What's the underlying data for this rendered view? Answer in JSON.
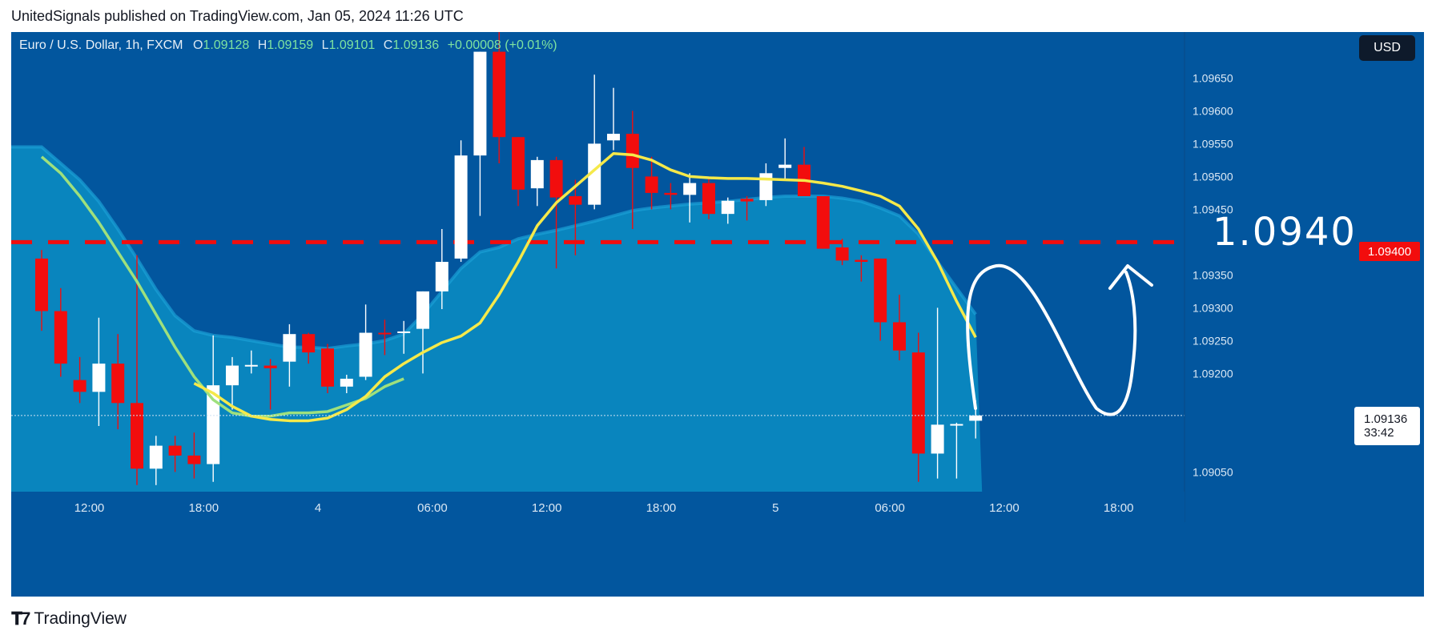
{
  "header": {
    "published_line": "UnitedSignals published on TradingView.com, Jan 05, 2024 11:26 UTC"
  },
  "legend": {
    "symbol": "Euro / U.S. Dollar, 1h, FXCM",
    "o_label": "O",
    "o_value": "1.09128",
    "h_label": "H",
    "h_value": "1.09159",
    "l_label": "L",
    "l_value": "1.09101",
    "c_label": "C",
    "c_value": "1.09136",
    "change": "+0.00008 (+0.01%)"
  },
  "currency_button": "USD",
  "price_badge": {
    "price": "1.09136",
    "countdown": "33:42"
  },
  "level_badge": "1.09400",
  "annotation_text": "1.0940",
  "footer": {
    "brand": "TradingView"
  },
  "colors": {
    "background": "#02569e",
    "up_candle": "#ffffff",
    "down_candle": "#f20d0d",
    "level_line": "#f20d0d",
    "yellow_ma": "#f5e94a",
    "green_ma": "#9ee07d",
    "band_fill": "#0a88c0"
  },
  "chart_data": {
    "type": "candlestick",
    "symbol": "EURUSD",
    "timeframe": "1h",
    "y_ticks": [
      "1.09650",
      "1.09600",
      "1.09550",
      "1.09500",
      "1.09450",
      "1.09350",
      "1.09300",
      "1.09250",
      "1.09200",
      "1.09050"
    ],
    "ylim": [
      1.0902,
      1.0972
    ],
    "x_ticks": [
      {
        "label": "12:00",
        "index": 2.5
      },
      {
        "label": "18:00",
        "index": 8.5
      },
      {
        "label": "4",
        "index": 14.5
      },
      {
        "label": "06:00",
        "index": 20.5
      },
      {
        "label": "12:00",
        "index": 26.5
      },
      {
        "label": "18:00",
        "index": 32.5
      },
      {
        "label": "5",
        "index": 38.5
      },
      {
        "label": "06:00",
        "index": 44.5
      },
      {
        "label": "12:00",
        "index": 50.5
      },
      {
        "label": "18:00",
        "index": 56.5
      }
    ],
    "candles": [
      {
        "o": 1.09375,
        "h": 1.09388,
        "l": 1.09265,
        "c": 1.09295
      },
      {
        "o": 1.09295,
        "h": 1.0933,
        "l": 1.09195,
        "c": 1.09215
      },
      {
        "o": 1.0919,
        "h": 1.09225,
        "l": 1.09155,
        "c": 1.09172
      },
      {
        "o": 1.09172,
        "h": 1.09285,
        "l": 1.0912,
        "c": 1.09215
      },
      {
        "o": 1.09215,
        "h": 1.0926,
        "l": 1.09115,
        "c": 1.09155
      },
      {
        "o": 1.09155,
        "h": 1.0938,
        "l": 1.0903,
        "c": 1.09055
      },
      {
        "o": 1.09055,
        "h": 1.09105,
        "l": 1.0903,
        "c": 1.0909
      },
      {
        "o": 1.0909,
        "h": 1.09105,
        "l": 1.0905,
        "c": 1.09075
      },
      {
        "o": 1.09075,
        "h": 1.0911,
        "l": 1.0904,
        "c": 1.09062
      },
      {
        "o": 1.09062,
        "h": 1.09258,
        "l": 1.09035,
        "c": 1.09182
      },
      {
        "o": 1.09182,
        "h": 1.09225,
        "l": 1.09145,
        "c": 1.09212
      },
      {
        "o": 1.09211,
        "h": 1.09235,
        "l": 1.092,
        "c": 1.09213
      },
      {
        "o": 1.09212,
        "h": 1.09222,
        "l": 1.09145,
        "c": 1.09208
      },
      {
        "o": 1.09218,
        "h": 1.09275,
        "l": 1.0918,
        "c": 1.0926
      },
      {
        "o": 1.0926,
        "h": 1.09262,
        "l": 1.09215,
        "c": 1.09232
      },
      {
        "o": 1.09238,
        "h": 1.09245,
        "l": 1.0917,
        "c": 1.0918
      },
      {
        "o": 1.0918,
        "h": 1.09198,
        "l": 1.0917,
        "c": 1.09192
      },
      {
        "o": 1.09195,
        "h": 1.09305,
        "l": 1.0919,
        "c": 1.09262
      },
      {
        "o": 1.09262,
        "h": 1.09282,
        "l": 1.09228,
        "c": 1.09261
      },
      {
        "o": 1.09262,
        "h": 1.0928,
        "l": 1.0923,
        "c": 1.09264
      },
      {
        "o": 1.09268,
        "h": 1.09325,
        "l": 1.092,
        "c": 1.09325
      },
      {
        "o": 1.09325,
        "h": 1.0942,
        "l": 1.09298,
        "c": 1.0937
      },
      {
        "o": 1.09375,
        "h": 1.09555,
        "l": 1.0937,
        "c": 1.09532
      },
      {
        "o": 1.09532,
        "h": 1.0969,
        "l": 1.0944,
        "c": 1.0969
      },
      {
        "o": 1.0969,
        "h": 1.0972,
        "l": 1.0952,
        "c": 1.0956
      },
      {
        "o": 1.0956,
        "h": 1.0956,
        "l": 1.09455,
        "c": 1.0948
      },
      {
        "o": 1.09482,
        "h": 1.0953,
        "l": 1.09455,
        "c": 1.09525
      },
      {
        "o": 1.09525,
        "h": 1.0953,
        "l": 1.0936,
        "c": 1.09468
      },
      {
        "o": 1.0947,
        "h": 1.09495,
        "l": 1.0938,
        "c": 1.09457
      },
      {
        "o": 1.09457,
        "h": 1.09655,
        "l": 1.0945,
        "c": 1.0955
      },
      {
        "o": 1.09555,
        "h": 1.09635,
        "l": 1.0954,
        "c": 1.09565
      },
      {
        "o": 1.09565,
        "h": 1.096,
        "l": 1.0942,
        "c": 1.09513
      },
      {
        "o": 1.095,
        "h": 1.0953,
        "l": 1.0945,
        "c": 1.09475
      },
      {
        "o": 1.09475,
        "h": 1.0949,
        "l": 1.0945,
        "c": 1.09472
      },
      {
        "o": 1.09472,
        "h": 1.09505,
        "l": 1.0943,
        "c": 1.0949
      },
      {
        "o": 1.0949,
        "h": 1.095,
        "l": 1.09435,
        "c": 1.09443
      },
      {
        "o": 1.09443,
        "h": 1.09468,
        "l": 1.09428,
        "c": 1.09463
      },
      {
        "o": 1.09466,
        "h": 1.0947,
        "l": 1.09433,
        "c": 1.09462
      },
      {
        "o": 1.09464,
        "h": 1.0952,
        "l": 1.09455,
        "c": 1.09505
      },
      {
        "o": 1.09513,
        "h": 1.09558,
        "l": 1.09495,
        "c": 1.09518
      },
      {
        "o": 1.09518,
        "h": 1.09545,
        "l": 1.0947,
        "c": 1.0947
      },
      {
        "o": 1.0947,
        "h": 1.0947,
        "l": 1.0939,
        "c": 1.0939
      },
      {
        "o": 1.09392,
        "h": 1.09405,
        "l": 1.09365,
        "c": 1.09372
      },
      {
        "o": 1.09373,
        "h": 1.0938,
        "l": 1.0934,
        "c": 1.0937
      },
      {
        "o": 1.09375,
        "h": 1.09375,
        "l": 1.0925,
        "c": 1.09278
      },
      {
        "o": 1.09278,
        "h": 1.0932,
        "l": 1.0922,
        "c": 1.09235
      },
      {
        "o": 1.09232,
        "h": 1.09262,
        "l": 1.09035,
        "c": 1.09078
      },
      {
        "o": 1.09078,
        "h": 1.093,
        "l": 1.0904,
        "c": 1.09122
      },
      {
        "o": 1.09122,
        "h": 1.09125,
        "l": 1.0904,
        "c": 1.09123
      },
      {
        "o": 1.09128,
        "h": 1.09159,
        "l": 1.09101,
        "c": 1.09136
      }
    ],
    "ma_yellow": [
      1.09185,
      1.0917,
      1.0915,
      1.09135,
      1.0913,
      1.09128,
      1.09128,
      1.09132,
      1.09145,
      1.09165,
      1.09195,
      1.09215,
      1.09232,
      1.09247,
      1.09257,
      1.09277,
      1.0932,
      1.0937,
      1.09425,
      1.0946,
      1.09485,
      1.0951,
      1.09535,
      1.09533,
      1.09525,
      1.0951,
      1.095,
      1.09498,
      1.09497,
      1.09497,
      1.09496,
      1.09495,
      1.09494,
      1.0949,
      1.09485,
      1.09478,
      1.0947,
      1.09455,
      1.0942,
      1.0937,
      1.0931,
      1.09255
    ],
    "ma_yellow_start": 8,
    "ma_green": [
      1.0953,
      1.09505,
      1.0947,
      1.0943,
      1.09385,
      1.0934,
      1.0929,
      1.0924,
      1.09195,
      1.0916,
      1.0914,
      1.09135,
      1.09135,
      1.0914,
      1.0914,
      1.09142,
      1.09152,
      1.09162,
      1.0918,
      1.09192
    ],
    "ma_green_start": 0,
    "band_upper": [
      1.09545,
      1.0952,
      1.09495,
      1.09462,
      1.0942,
      1.09375,
      1.09328,
      1.09288,
      1.09265,
      1.09258,
      1.09255,
      1.0925,
      1.09245,
      1.0924,
      1.0924,
      1.09238,
      1.09242,
      1.09245,
      1.0925,
      1.0926,
      1.0929,
      1.09325,
      1.0936,
      1.09385,
      1.09392,
      1.09405,
      1.09412,
      1.09418,
      1.09425,
      1.09432,
      1.0944,
      1.09448,
      1.09452,
      1.09455,
      1.09458,
      1.0946,
      1.09462,
      1.09465,
      1.09468,
      1.0947,
      1.0947,
      1.0947,
      1.09467,
      1.09462,
      1.09452,
      1.0944,
      1.09412,
      1.0937,
      1.0933,
      1.0929
    ],
    "level": 1.094,
    "current_price": 1.09136
  }
}
